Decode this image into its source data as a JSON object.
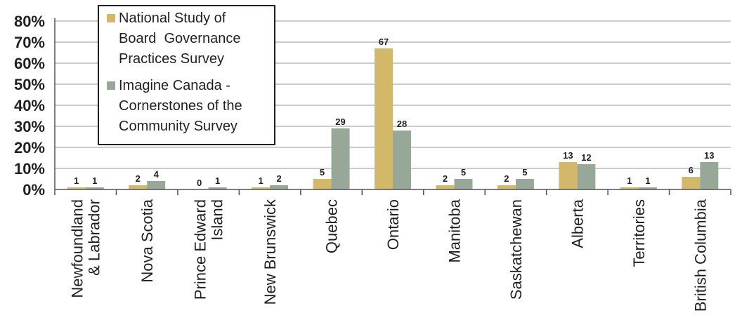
{
  "chart_data": {
    "type": "bar",
    "categories": [
      "Newfoundland & Labrador",
      "Nova Scotia",
      "Prince Edward Island",
      "New Brunswick",
      "Quebec",
      "Ontario",
      "Manitoba",
      "Saskatchewan",
      "Alberta",
      "Territories",
      "British Columbia"
    ],
    "category_lines": [
      [
        "Newfoundland",
        "& Labrador"
      ],
      [
        "Nova Scotia"
      ],
      [
        "Prince Edward",
        "Island"
      ],
      [
        "New Brunswick"
      ],
      [
        "Quebec"
      ],
      [
        "Ontario"
      ],
      [
        "Manitoba"
      ],
      [
        "Saskatchewan"
      ],
      [
        "Alberta"
      ],
      [
        "Territories"
      ],
      [
        "British Columbia"
      ]
    ],
    "series": [
      {
        "name": "National Study of Board Governance Practices Survey",
        "legend_lines": [
          "National Study of",
          "Board  Governance",
          "Practices Survey"
        ],
        "color": "#d4b86a",
        "values": [
          1,
          2,
          0,
          1,
          5,
          67,
          2,
          2,
          13,
          1,
          6
        ]
      },
      {
        "name": "Imagine Canada - Cornerstones of the Community Survey",
        "legend_lines": [
          "Imagine Canada -",
          "Cornerstones of the",
          "Community Survey"
        ],
        "color": "#97a898",
        "values": [
          1,
          4,
          1,
          2,
          29,
          28,
          5,
          5,
          12,
          1,
          13
        ]
      }
    ],
    "y_ticks": [
      "0%",
      "10%",
      "20%",
      "30%",
      "40%",
      "50%",
      "60%",
      "70%",
      "80%"
    ],
    "ylim": [
      0,
      80
    ],
    "grid": true,
    "legend_position": "top-left",
    "title": "",
    "xlabel": "",
    "ylabel": ""
  }
}
